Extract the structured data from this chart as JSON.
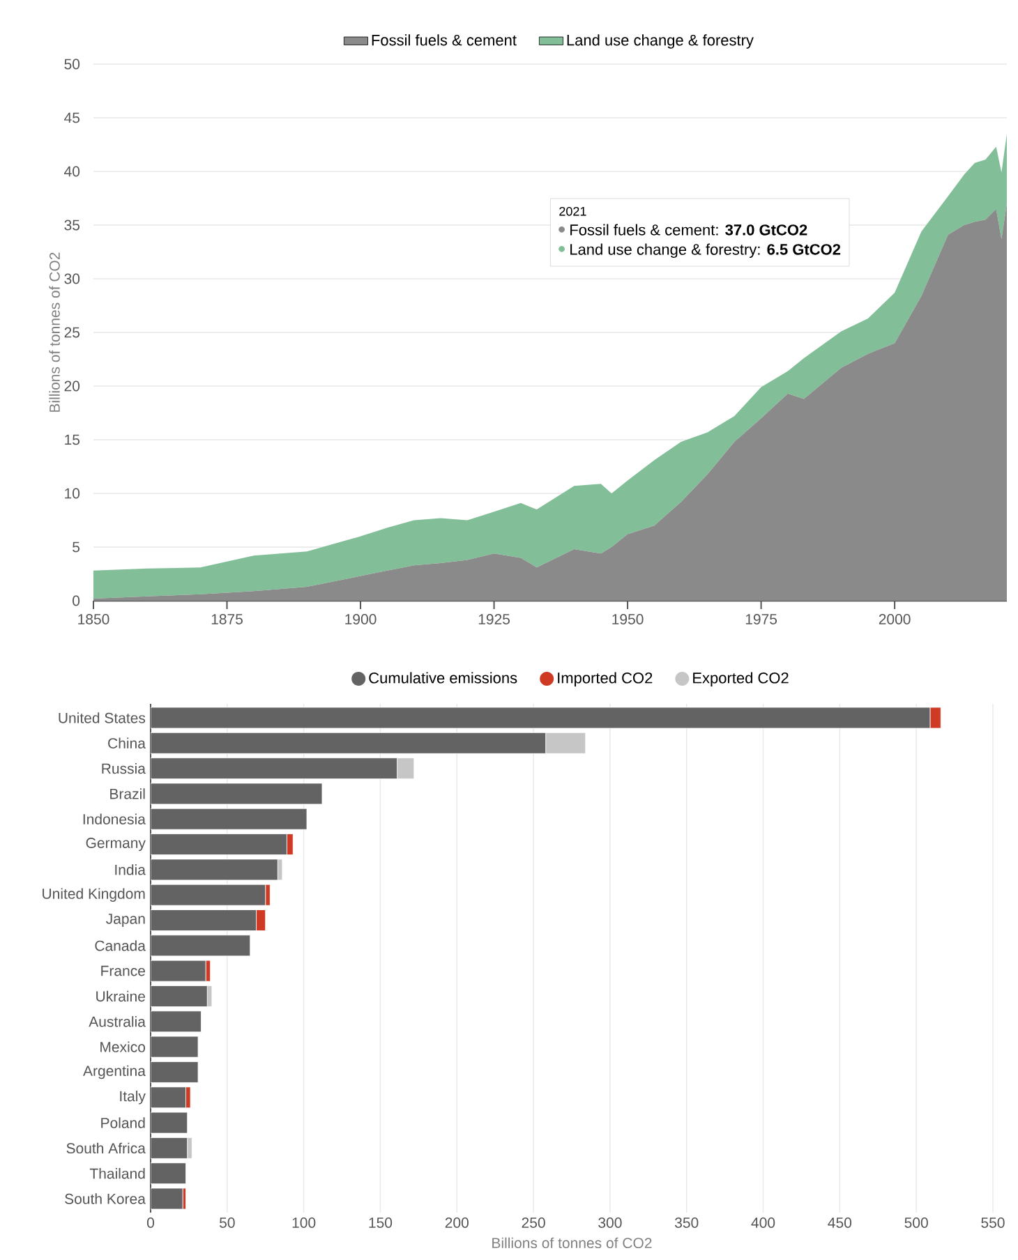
{
  "chart_data": [
    {
      "type": "area",
      "stacked": true,
      "xlim": [
        1850,
        2021
      ],
      "ylim": [
        0,
        50
      ],
      "xticks": [
        1850,
        1875,
        1900,
        1925,
        1950,
        1975,
        2000
      ],
      "yticks": [
        0,
        5,
        10,
        15,
        20,
        25,
        30,
        35,
        40,
        45,
        50
      ],
      "ylabel": "Billions of tonnes of CO2",
      "grid": "y",
      "legend": "top",
      "x": [
        1850,
        1860,
        1870,
        1880,
        1890,
        1900,
        1905,
        1910,
        1915,
        1920,
        1925,
        1930,
        1933,
        1940,
        1945,
        1947,
        1950,
        1955,
        1960,
        1965,
        1970,
        1975,
        1980,
        1983,
        1990,
        1995,
        2000,
        2005,
        2010,
        2013,
        2015,
        2017,
        2019,
        2020,
        2021
      ],
      "series": [
        {
          "name": "Fossil fuels & cement",
          "color": "#8a8a8a",
          "values": [
            0.2,
            0.4,
            0.6,
            0.9,
            1.3,
            2.3,
            2.8,
            3.3,
            3.5,
            3.8,
            4.4,
            4.0,
            3.1,
            4.8,
            4.4,
            5.0,
            6.2,
            7.0,
            9.2,
            11.8,
            14.8,
            17.0,
            19.3,
            18.8,
            21.7,
            23.0,
            24.0,
            28.4,
            34.1,
            35.0,
            35.3,
            35.5,
            36.5,
            33.7,
            37.0
          ]
        },
        {
          "name": "Land use change & forestry",
          "color": "#82bf98",
          "values": [
            2.6,
            2.6,
            2.5,
            3.3,
            3.3,
            3.7,
            4.0,
            4.2,
            4.2,
            3.7,
            3.9,
            5.1,
            5.4,
            5.9,
            6.5,
            5.0,
            5.0,
            6.1,
            5.6,
            3.9,
            2.4,
            2.9,
            2.1,
            3.8,
            3.4,
            3.3,
            4.7,
            6.0,
            3.6,
            4.7,
            5.5,
            5.6,
            5.8,
            6.2,
            6.5
          ]
        }
      ],
      "annotations": [
        "2021",
        "Fossil fuels & cement: **37.0 GtCO2**",
        "Land use change & forestry: **6.5 GtCO2**"
      ]
    },
    {
      "type": "bar",
      "orientation": "horizontal",
      "stacked": true,
      "xlim": [
        0,
        550
      ],
      "xticks": [
        0,
        50,
        100,
        150,
        200,
        250,
        300,
        350,
        400,
        450,
        500,
        550
      ],
      "xlabel": "Billions of tonnes of CO2",
      "grid": "x",
      "legend": "top",
      "categories": [
        "United States",
        "China",
        "Russia",
        "Brazil",
        "Indonesia",
        "Germany",
        "India",
        "United Kingdom",
        "Japan",
        "Canada",
        "France",
        "Ukraine",
        "Australia",
        "Mexico",
        "Argentina",
        "Italy",
        "Poland",
        "South Africa",
        "Thailand",
        "South Korea"
      ],
      "series": [
        {
          "name": "Cumulative emissions",
          "color": "#636363",
          "values": [
            509,
            258,
            161,
            112,
            102,
            89,
            83,
            75,
            69,
            65,
            36,
            37,
            33,
            31,
            31,
            23,
            24,
            24,
            23,
            21
          ]
        },
        {
          "name": "Imported CO2",
          "color": "#cf3a24",
          "values": [
            7,
            null,
            null,
            null,
            null,
            4,
            null,
            3,
            6,
            null,
            3,
            null,
            null,
            null,
            null,
            3,
            null,
            null,
            null,
            2
          ]
        },
        {
          "name": "Exported CO2",
          "color": "#c6c6c6",
          "values": [
            null,
            26,
            11,
            null,
            null,
            null,
            3,
            null,
            null,
            null,
            null,
            3,
            null,
            null,
            null,
            null,
            null,
            3,
            null,
            null
          ]
        }
      ]
    }
  ]
}
